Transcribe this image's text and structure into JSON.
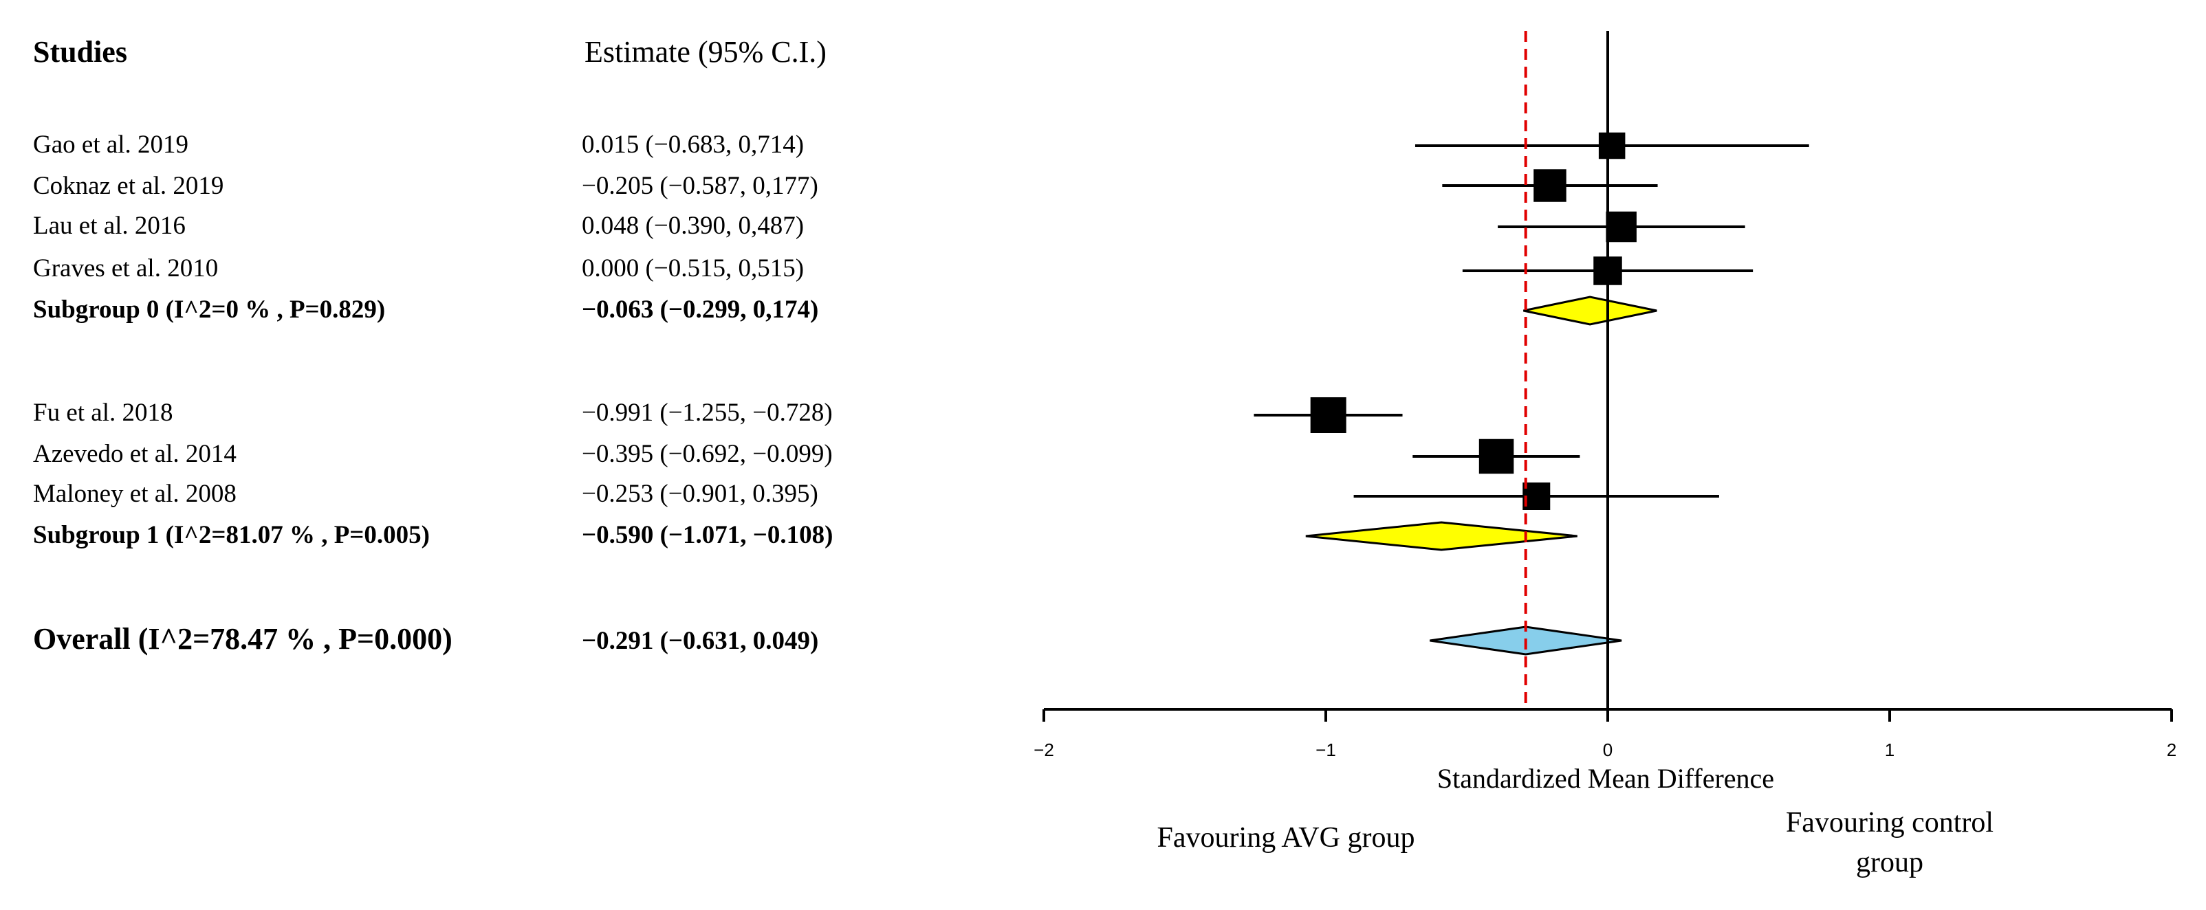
{
  "headers": {
    "studies": "Studies",
    "estimate": "Estimate (95% C.I.)"
  },
  "chart_data": {
    "type": "forest",
    "xlabel": "Standardized Mean Difference",
    "xlim": [
      -2,
      2
    ],
    "xticks": [
      {
        "value": -2,
        "label": "−2"
      },
      {
        "value": -1,
        "label": "−1"
      },
      {
        "value": 0,
        "label": "0"
      },
      {
        "value": 1,
        "label": "1"
      },
      {
        "value": 2,
        "label": "2"
      }
    ],
    "overall_reference_line": -0.291,
    "favouring_left": "Favouring AVG group",
    "favouring_right": [
      "Favouring control",
      "group"
    ],
    "rows": [
      {
        "kind": "study",
        "label": "Gao et al. 2019",
        "estimate_text": "0.015 (−0.683, 0,714)",
        "est": 0.015,
        "lo": -0.683,
        "hi": 0.714,
        "weight": 0.55
      },
      {
        "kind": "study",
        "label": "Coknaz et al. 2019",
        "estimate_text": "−0.205 (−0.587, 0,177)",
        "est": -0.205,
        "lo": -0.587,
        "hi": 0.177,
        "weight": 0.85
      },
      {
        "kind": "study",
        "label": "Lau et al. 2016",
        "estimate_text": "0.048 (−0.390, 0,487)",
        "est": 0.048,
        "lo": -0.39,
        "hi": 0.487,
        "weight": 0.75
      },
      {
        "kind": "study",
        "label": "Graves et al. 2010",
        "estimate_text": "0.000 (−0.515, 0,515)",
        "est": 0.0,
        "lo": -0.515,
        "hi": 0.515,
        "weight": 0.65
      },
      {
        "kind": "subgroup",
        "label": "Subgroup 0 (I^2=0 % , P=0.829)",
        "estimate_text": "−0.063 (−0.299, 0,174)",
        "est": -0.063,
        "lo": -0.299,
        "hi": 0.174,
        "color": "#ffff00"
      },
      {
        "kind": "study",
        "label": "Fu et al. 2018",
        "estimate_text": "−0.991 (−1.255, −0.728)",
        "est": -0.991,
        "lo": -1.255,
        "hi": -0.728,
        "weight": 1.0
      },
      {
        "kind": "study",
        "label": "Azevedo et al. 2014",
        "estimate_text": "−0.395 (−0.692, −0.099)",
        "est": -0.395,
        "lo": -0.692,
        "hi": -0.099,
        "weight": 0.95
      },
      {
        "kind": "study",
        "label": "Maloney et al. 2008",
        "estimate_text": "−0.253 (−0.901, 0.395)",
        "est": -0.253,
        "lo": -0.901,
        "hi": 0.395,
        "weight": 0.6
      },
      {
        "kind": "subgroup",
        "label": "Subgroup 1 (I^2=81.07 % , P=0.005)",
        "estimate_text": "−0.590 (−1.071, −0.108)",
        "est": -0.59,
        "lo": -1.071,
        "hi": -0.108,
        "color": "#ffff00"
      },
      {
        "kind": "overall",
        "label": "Overall (I^2=78.47 % , P=0.000)",
        "estimate_text": "−0.291 (−0.631, 0.049)",
        "est": -0.291,
        "lo": -0.631,
        "hi": 0.049,
        "color": "#87ceeb"
      }
    ]
  }
}
